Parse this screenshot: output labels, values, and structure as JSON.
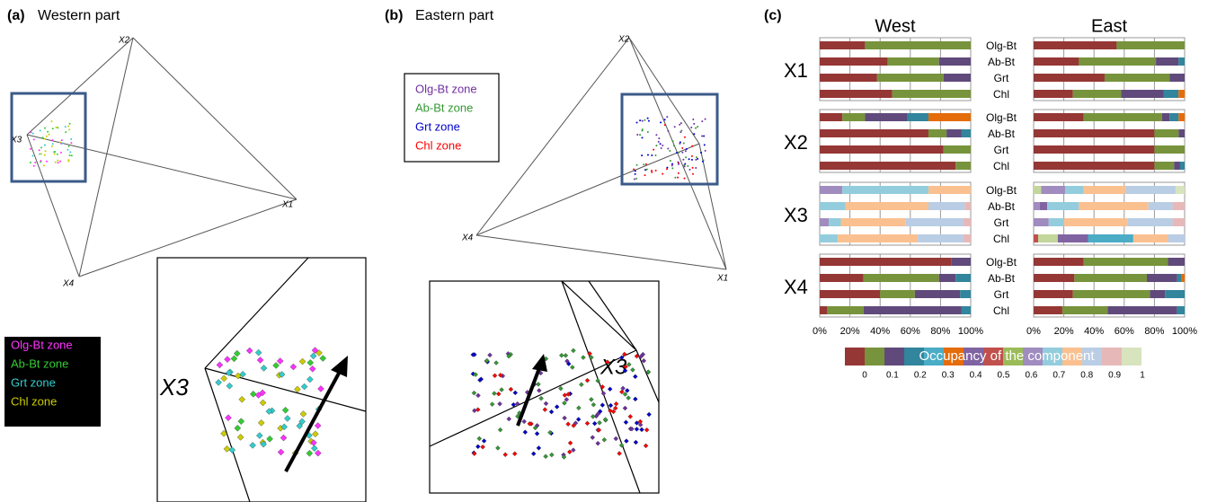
{
  "panel_a": {
    "label": "(a)",
    "title": "Western part",
    "vertices": [
      "X1",
      "X2",
      "X3",
      "X4"
    ],
    "zoom_label": "X3",
    "legend": [
      {
        "name": "Olg-Bt zone",
        "color": "#ff33ff"
      },
      {
        "name": "Ab-Bt zone",
        "color": "#33cc33"
      },
      {
        "name": "Grt zone",
        "color": "#33cccc"
      },
      {
        "name": "Chl zone",
        "color": "#cccc00"
      }
    ]
  },
  "panel_b": {
    "label": "(b)",
    "title": "Eastern part",
    "vertices": [
      "X1",
      "X2",
      "X3",
      "X4"
    ],
    "zoom_label": "X3",
    "legend": [
      {
        "name": "Olg-Bt zone",
        "color": "#7030a0"
      },
      {
        "name": "Ab-Bt zone",
        "color": "#339933"
      },
      {
        "name": "Grt zone",
        "color": "#0000cc"
      },
      {
        "name": "Chl zone",
        "color": "#ff0000"
      }
    ]
  },
  "chart_data": {
    "type": "bar",
    "orientation": "horizontal",
    "stacked": true,
    "label": "(c)",
    "groups": [
      "X1",
      "X2",
      "X3",
      "X4"
    ],
    "zones": [
      "Olg-Bt",
      "Ab-Bt",
      "Grt",
      "Chl"
    ],
    "xlim": [
      0,
      100
    ],
    "xticks": [
      {
        "value": 0,
        "label": "0%"
      },
      {
        "value": 20,
        "label": "20%"
      },
      {
        "value": 40,
        "label": "40%"
      },
      {
        "value": 60,
        "label": "60%"
      },
      {
        "value": 80,
        "label": "80%"
      },
      {
        "value": 100,
        "label": "100%"
      }
    ],
    "grid": true,
    "panels": [
      {
        "title": "West",
        "bars": [
          [
            [
              {
                "value": 30,
                "color": "#953735"
              },
              {
                "value": 70,
                "color": "#77933c"
              }
            ],
            [
              {
                "value": 45,
                "color": "#953735"
              },
              {
                "value": 34,
                "color": "#77933c"
              },
              {
                "value": 21,
                "color": "#604a7b"
              }
            ],
            [
              {
                "value": 38,
                "color": "#953735"
              },
              {
                "value": 44,
                "color": "#77933c"
              },
              {
                "value": 18,
                "color": "#604a7b"
              }
            ],
            [
              {
                "value": 48,
                "color": "#953735"
              },
              {
                "value": 52,
                "color": "#77933c"
              }
            ]
          ],
          [
            [
              {
                "value": 15,
                "color": "#953735"
              },
              {
                "value": 15,
                "color": "#77933c"
              },
              {
                "value": 28,
                "color": "#604a7b"
              },
              {
                "value": 14,
                "color": "#31859c"
              },
              {
                "value": 28,
                "color": "#e46c0a"
              }
            ],
            [
              {
                "value": 72,
                "color": "#953735"
              },
              {
                "value": 12,
                "color": "#77933c"
              },
              {
                "value": 10,
                "color": "#604a7b"
              },
              {
                "value": 6,
                "color": "#31859c"
              }
            ],
            [
              {
                "value": 82,
                "color": "#953735"
              },
              {
                "value": 18,
                "color": "#77933c"
              }
            ],
            [
              {
                "value": 90,
                "color": "#953735"
              },
              {
                "value": 10,
                "color": "#77933c"
              }
            ]
          ],
          [
            [
              {
                "value": 15,
                "color": "#a08cbf"
              },
              {
                "value": 57,
                "color": "#93cddd"
              },
              {
                "value": 28,
                "color": "#fac090"
              }
            ],
            [
              {
                "value": 17,
                "color": "#93cddd"
              },
              {
                "value": 55,
                "color": "#fac090"
              },
              {
                "value": 24,
                "color": "#b9cde5"
              },
              {
                "value": 4,
                "color": "#e6b9b8"
              }
            ],
            [
              {
                "value": 6,
                "color": "#a08cbf"
              },
              {
                "value": 8,
                "color": "#93cddd"
              },
              {
                "value": 43,
                "color": "#fac090"
              },
              {
                "value": 38,
                "color": "#b9cde5"
              },
              {
                "value": 5,
                "color": "#e6b9b8"
              }
            ],
            [
              {
                "value": 12,
                "color": "#93cddd"
              },
              {
                "value": 53,
                "color": "#fac090"
              },
              {
                "value": 30,
                "color": "#b9cde5"
              },
              {
                "value": 5,
                "color": "#e6b9b8"
              }
            ]
          ],
          [
            [
              {
                "value": 87,
                "color": "#953735"
              },
              {
                "value": 13,
                "color": "#604a7b"
              }
            ],
            [
              {
                "value": 29,
                "color": "#953735"
              },
              {
                "value": 50,
                "color": "#77933c"
              },
              {
                "value": 11,
                "color": "#604a7b"
              },
              {
                "value": 10,
                "color": "#31859c"
              }
            ],
            [
              {
                "value": 40,
                "color": "#953735"
              },
              {
                "value": 23,
                "color": "#77933c"
              },
              {
                "value": 30,
                "color": "#604a7b"
              },
              {
                "value": 7,
                "color": "#31859c"
              }
            ],
            [
              {
                "value": 5,
                "color": "#953735"
              },
              {
                "value": 24,
                "color": "#77933c"
              },
              {
                "value": 65,
                "color": "#604a7b"
              },
              {
                "value": 6,
                "color": "#31859c"
              }
            ]
          ]
        ]
      },
      {
        "title": "East",
        "bars": [
          [
            [
              {
                "value": 55,
                "color": "#953735"
              },
              {
                "value": 45,
                "color": "#77933c"
              }
            ],
            [
              {
                "value": 30,
                "color": "#953735"
              },
              {
                "value": 51,
                "color": "#77933c"
              },
              {
                "value": 15,
                "color": "#604a7b"
              },
              {
                "value": 4,
                "color": "#31859c"
              }
            ],
            [
              {
                "value": 47,
                "color": "#953735"
              },
              {
                "value": 43,
                "color": "#77933c"
              },
              {
                "value": 10,
                "color": "#604a7b"
              }
            ],
            [
              {
                "value": 26,
                "color": "#953735"
              },
              {
                "value": 32,
                "color": "#77933c"
              },
              {
                "value": 28,
                "color": "#604a7b"
              },
              {
                "value": 10,
                "color": "#31859c"
              },
              {
                "value": 4,
                "color": "#e46c0a"
              }
            ]
          ],
          [
            [
              {
                "value": 33,
                "color": "#953735"
              },
              {
                "value": 52,
                "color": "#77933c"
              },
              {
                "value": 5,
                "color": "#604a7b"
              },
              {
                "value": 6,
                "color": "#31859c"
              },
              {
                "value": 4,
                "color": "#e46c0a"
              }
            ],
            [
              {
                "value": 80,
                "color": "#953735"
              },
              {
                "value": 16,
                "color": "#77933c"
              },
              {
                "value": 4,
                "color": "#604a7b"
              }
            ],
            [
              {
                "value": 80,
                "color": "#953735"
              },
              {
                "value": 20,
                "color": "#77933c"
              }
            ],
            [
              {
                "value": 80,
                "color": "#953735"
              },
              {
                "value": 13,
                "color": "#77933c"
              },
              {
                "value": 4,
                "color": "#604a7b"
              },
              {
                "value": 3,
                "color": "#31859c"
              }
            ]
          ],
          [
            [
              {
                "value": 5,
                "color": "#c3d69b"
              },
              {
                "value": 16,
                "color": "#a08cbf"
              },
              {
                "value": 12,
                "color": "#93cddd"
              },
              {
                "value": 28,
                "color": "#fac090"
              },
              {
                "value": 33,
                "color": "#b9cde5"
              },
              {
                "value": 6,
                "color": "#d7e4bd"
              }
            ],
            [
              {
                "value": 4,
                "color": "#a08cbf"
              },
              {
                "value": 5,
                "color": "#8064a2"
              },
              {
                "value": 21,
                "color": "#93cddd"
              },
              {
                "value": 46,
                "color": "#fac090"
              },
              {
                "value": 16,
                "color": "#b9cde5"
              },
              {
                "value": 8,
                "color": "#e6b9b8"
              }
            ],
            [
              {
                "value": 10,
                "color": "#a08cbf"
              },
              {
                "value": 10,
                "color": "#93cddd"
              },
              {
                "value": 42,
                "color": "#fac090"
              },
              {
                "value": 30,
                "color": "#b9cde5"
              },
              {
                "value": 8,
                "color": "#e6b9b8"
              }
            ],
            [
              {
                "value": 3,
                "color": "#c0504d"
              },
              {
                "value": 13,
                "color": "#c3d69b"
              },
              {
                "value": 20,
                "color": "#8064a2"
              },
              {
                "value": 30,
                "color": "#4bacc6"
              },
              {
                "value": 23,
                "color": "#fac090"
              },
              {
                "value": 11,
                "color": "#b9cde5"
              }
            ]
          ],
          [
            [
              {
                "value": 33,
                "color": "#953735"
              },
              {
                "value": 56,
                "color": "#77933c"
              },
              {
                "value": 11,
                "color": "#604a7b"
              }
            ],
            [
              {
                "value": 27,
                "color": "#953735"
              },
              {
                "value": 48,
                "color": "#77933c"
              },
              {
                "value": 20,
                "color": "#604a7b"
              },
              {
                "value": 3,
                "color": "#31859c"
              },
              {
                "value": 2,
                "color": "#e46c0a"
              }
            ],
            [
              {
                "value": 26,
                "color": "#953735"
              },
              {
                "value": 51,
                "color": "#77933c"
              },
              {
                "value": 10,
                "color": "#604a7b"
              },
              {
                "value": 13,
                "color": "#31859c"
              }
            ],
            [
              {
                "value": 19,
                "color": "#953735"
              },
              {
                "value": 30,
                "color": "#77933c"
              },
              {
                "value": 46,
                "color": "#604a7b"
              },
              {
                "value": 5,
                "color": "#31859c"
              }
            ]
          ]
        ]
      }
    ],
    "colorbar": {
      "title": "Occupancy of the component",
      "colors": [
        "#953735",
        "#77933c",
        "#604a7b",
        "#31859c",
        "#4bacc6",
        "#e46c0a",
        "#8064a2",
        "#c0504d",
        "#9bbb59",
        "#a08cbf",
        "#93cddd",
        "#fac090",
        "#b9cde5",
        "#e6b9b8",
        "#d7e4bd"
      ],
      "lim": [
        0,
        1
      ],
      "ticks": [
        0,
        0.1,
        0.2,
        0.3,
        0.4,
        0.5,
        0.6,
        0.7,
        0.8,
        0.9,
        1
      ]
    }
  }
}
